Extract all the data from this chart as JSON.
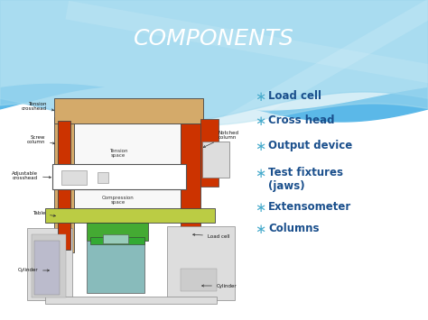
{
  "title": "COMPONENTS",
  "title_color": "#FFFFFF",
  "title_fontsize": 18,
  "bg_blue": "#5BB8E8",
  "bg_white": "#FFFFFF",
  "bullet_items": [
    "Load cell",
    "Cross head",
    "Output device",
    "Test fixtures\n(jaws)",
    "Extensometer",
    "Columns"
  ],
  "bullet_color": "#1A4F8C",
  "bullet_star_color": "#44AACC",
  "bullet_fontsize": 8.5,
  "col_tan": "#D4AA6A",
  "col_orange": "#CC3300",
  "col_yellow_green": "#BBCC44",
  "col_green": "#44AA33",
  "col_gray": "#AAAAAA",
  "col_light_gray": "#DDDDDD",
  "col_white": "#FFFFFF",
  "col_outline": "#555555"
}
